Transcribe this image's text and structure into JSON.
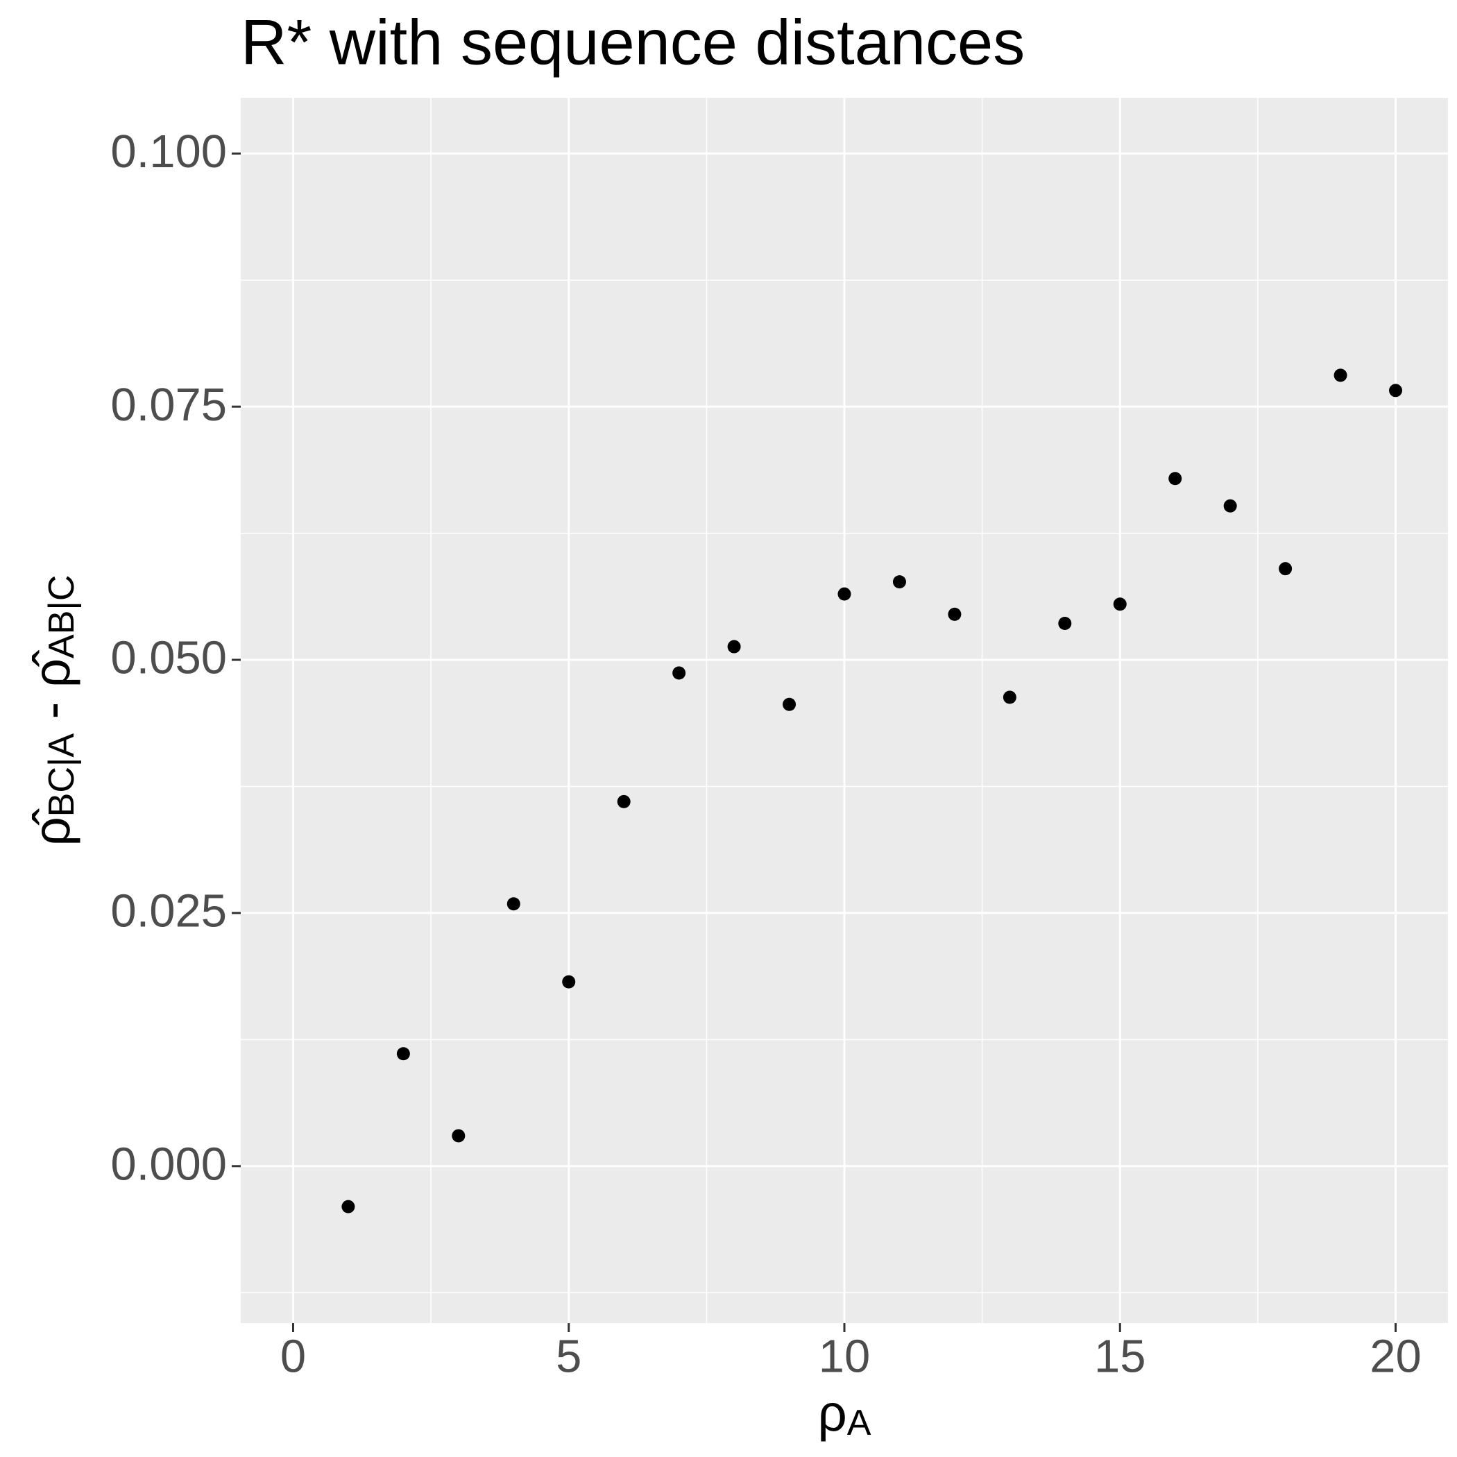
{
  "chart_data": {
    "type": "scatter",
    "title": "R* with sequence distances",
    "x_label": {
      "main": "ρ",
      "sub": "A"
    },
    "y_label": {
      "main1": "ρ̂",
      "sub1": "BC|A",
      "sep": " - ",
      "main2": "ρ̂",
      "sub2": "AB|C"
    },
    "x": [
      1,
      2,
      3,
      4,
      5,
      6,
      7,
      8,
      9,
      10,
      11,
      12,
      13,
      14,
      15,
      16,
      17,
      18,
      19,
      20
    ],
    "values": [
      -0.004,
      0.0111,
      0.003,
      0.0259,
      0.0182,
      0.036,
      0.0487,
      0.0513,
      0.0456,
      0.0565,
      0.0577,
      0.0545,
      0.0463,
      0.0536,
      0.0555,
      0.0679,
      0.0652,
      0.059,
      0.0781,
      0.0766
    ],
    "color": "#000000",
    "xlim": [
      -0.95,
      20.95
    ],
    "xticks": [
      0,
      5,
      10,
      15,
      20
    ],
    "ylim": [
      -0.0155,
      0.1055
    ],
    "yticks": [
      {
        "value": 0,
        "label": "0.000"
      },
      {
        "value": 0.025,
        "label": "0.025"
      },
      {
        "value": 0.05,
        "label": "0.050"
      },
      {
        "value": 0.075,
        "label": "0.075"
      },
      {
        "value": 0.1,
        "label": "0.100"
      }
    ],
    "x_minor_grid": [
      2.5,
      7.5,
      12.5,
      17.5
    ],
    "y_minor_grid": [
      -0.0125,
      0.0125,
      0.0375,
      0.0625,
      0.0875
    ],
    "grid": true
  }
}
